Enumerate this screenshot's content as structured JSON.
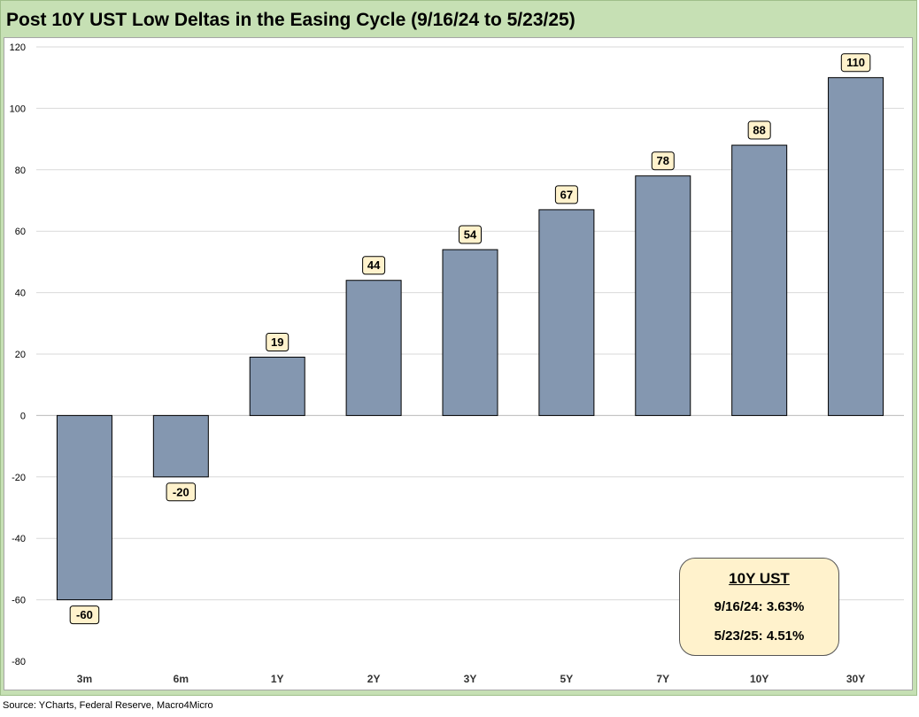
{
  "title": "Post 10Y UST Low Deltas in the Easing Cycle (9/16/24 to 5/23/25)",
  "source": "Source: YCharts, Federal Reserve, Macro4Micro",
  "info_box": {
    "title": "10Y UST",
    "rows": [
      "9/16/24:  3.63%",
      "5/23/25:  4.51%"
    ]
  },
  "colors": {
    "bar_fill": "#8497b0",
    "frame_bg": "#c6e0b4",
    "label_bg": "#fff2cc",
    "gridline": "#d9d9d9"
  },
  "chart_data": {
    "type": "bar",
    "title": "Post 10Y UST Low Deltas in the Easing Cycle (9/16/24 to 5/23/25)",
    "categories": [
      "3m",
      "6m",
      "1Y",
      "2Y",
      "3Y",
      "5Y",
      "7Y",
      "10Y",
      "30Y"
    ],
    "values": [
      -60,
      -20,
      19,
      44,
      54,
      67,
      78,
      88,
      110
    ],
    "data_labels": [
      "-60",
      "-20",
      "19",
      "44",
      "54",
      "67",
      "78",
      "88",
      "110"
    ],
    "ylim": [
      -80,
      120
    ],
    "yticks": [
      -80,
      -60,
      -40,
      -20,
      0,
      20,
      40,
      60,
      80,
      100,
      120
    ],
    "xlabel": "",
    "ylabel": "",
    "grid": true,
    "legend": "none"
  }
}
